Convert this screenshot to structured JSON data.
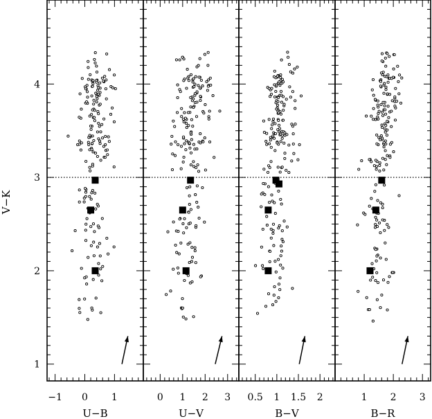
{
  "chart_data": [
    {
      "type": "scatter",
      "xlabel": "U−B",
      "ylabel": "V−K",
      "xlim": [
        -1.27,
        1.97
      ],
      "ylim": [
        0.82,
        4.9
      ],
      "xticks": [
        -1,
        0,
        1
      ],
      "xtick_labels": [
        "−1",
        "0",
        "1"
      ],
      "yticks": [
        1,
        2,
        3,
        4
      ],
      "ytick_labels": [
        "1",
        "2",
        "3",
        "4"
      ],
      "reference_line_y": 3.0,
      "reddening_vector": {
        "x": [
          1.25,
          1.45
        ],
        "y": [
          1.0,
          1.3
        ]
      },
      "highlighted_points": {
        "x": [
          0.35,
          0.2,
          0.35
        ],
        "y": [
          2.97,
          2.65,
          2.0
        ]
      },
      "seed": 11,
      "centers": [
        0.3,
        0.45,
        0.3,
        0.25,
        0.3,
        0.2
      ],
      "spread": 0.55
    },
    {
      "type": "scatter",
      "xlabel": "U−V",
      "ylim": [
        0.82,
        4.9
      ],
      "xlim": [
        -0.75,
        3.5
      ],
      "xticks": [
        0,
        1,
        2,
        3
      ],
      "xtick_labels": [
        "0",
        "1",
        "2",
        "3"
      ],
      "reference_line_y": 3.0,
      "reddening_vector": {
        "x": [
          2.45,
          2.75
        ],
        "y": [
          1.0,
          1.3
        ]
      },
      "highlighted_points": {
        "x": [
          1.35,
          1.0,
          1.15
        ],
        "y": [
          2.97,
          2.65,
          2.0
        ]
      },
      "seed": 23,
      "centers": [
        1.4,
        1.55,
        1.3,
        1.15,
        1.15,
        0.9
      ],
      "spread": 0.85
    },
    {
      "type": "scatter",
      "xlabel": "B−V",
      "ylim": [
        0.82,
        4.9
      ],
      "xlim": [
        0.12,
        2.35
      ],
      "xticks": [
        0.5,
        1,
        1.5,
        2
      ],
      "xtick_labels": [
        "0.5",
        "1",
        "1.5",
        "2"
      ],
      "reference_line_y": 3.0,
      "reddening_vector": {
        "x": [
          1.52,
          1.65
        ],
        "y": [
          1.0,
          1.3
        ]
      },
      "highlighted_points": {
        "x": [
          0.98,
          1.05,
          0.8,
          0.8
        ],
        "y": [
          2.97,
          2.93,
          2.65,
          2.0
        ]
      },
      "seed": 37,
      "centers": [
        1.05,
        1.15,
        1.0,
        0.95,
        0.95,
        0.85
      ],
      "spread": 0.35
    },
    {
      "type": "scatter",
      "xlabel": "B−R",
      "ylim": [
        0.82,
        4.9
      ],
      "xlim": [
        0.0,
        3.28
      ],
      "xticks": [
        1,
        2,
        3
      ],
      "xtick_labels": [
        "1",
        "2",
        "3"
      ],
      "reference_line_y": 3.0,
      "reddening_vector": {
        "x": [
          2.3,
          2.5
        ],
        "y": [
          1.0,
          1.3
        ]
      },
      "highlighted_points": {
        "x": [
          1.6,
          1.4,
          1.2
        ],
        "y": [
          2.97,
          2.65,
          2.0
        ]
      },
      "seed": 53,
      "centers": [
        1.7,
        1.85,
        1.55,
        1.45,
        1.5,
        1.3
      ],
      "spread": 0.55
    }
  ]
}
